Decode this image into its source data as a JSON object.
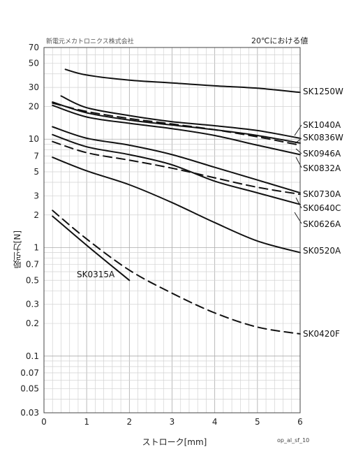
{
  "header": {
    "company": "新電元メカトロニクス株式会社",
    "condition_note": "20℃における値"
  },
  "footer": {
    "figure_id": "op_al_sf_10"
  },
  "chart_data": {
    "type": "line",
    "title": "",
    "xlabel": "ストローク[mm]",
    "ylabel": "吸引力[N]",
    "xlim": [
      0,
      6
    ],
    "ylim": [
      0.03,
      70
    ],
    "y_scale": "log",
    "grid": true,
    "x_ticks": [
      "0",
      "1",
      "2",
      "3",
      "4",
      "5",
      "6"
    ],
    "y_ticks": [
      {
        "value": 70,
        "label": "70"
      },
      {
        "value": 50,
        "label": "50"
      },
      {
        "value": 30,
        "label": "30"
      },
      {
        "value": 20,
        "label": "20"
      },
      {
        "value": 10,
        "label": "10"
      },
      {
        "value": 7,
        "label": "7"
      },
      {
        "value": 5,
        "label": "5"
      },
      {
        "value": 3,
        "label": "3"
      },
      {
        "value": 2,
        "label": "2"
      },
      {
        "value": 1,
        "label": "1"
      },
      {
        "value": 0.7,
        "label": "0.7"
      },
      {
        "value": 0.5,
        "label": "0.5"
      },
      {
        "value": 0.3,
        "label": "0.3"
      },
      {
        "value": 0.2,
        "label": "0.2"
      },
      {
        "value": 0.1,
        "label": "0.1"
      },
      {
        "value": 0.07,
        "label": "0.07"
      },
      {
        "value": 0.05,
        "label": "0.05"
      },
      {
        "value": 0.03,
        "label": "0.03"
      }
    ],
    "series": [
      {
        "name": "SK1250W",
        "dashed": false,
        "x": [
          0.5,
          1,
          2,
          3,
          4,
          5,
          6
        ],
        "y": [
          44,
          39,
          35,
          33,
          31,
          29.5,
          27
        ]
      },
      {
        "name": "SK1040A",
        "dashed": false,
        "x": [
          0.4,
          1,
          2,
          3,
          4,
          5,
          6
        ],
        "y": [
          25,
          19.5,
          16.5,
          14.5,
          13.3,
          12,
          10.2
        ]
      },
      {
        "name": "SK0836W",
        "dashed": true,
        "x": [
          0.2,
          1,
          2,
          3,
          4,
          5,
          6
        ],
        "y": [
          21.5,
          18,
          15.5,
          13.8,
          12.2,
          10.5,
          8.8
        ]
      },
      {
        "name": "SK0946A",
        "dashed": false,
        "x": [
          0.2,
          1,
          2,
          3,
          4,
          5,
          6
        ],
        "y": [
          22,
          17.5,
          15,
          13.5,
          12.2,
          10.8,
          9.2
        ]
      },
      {
        "name": "SK0832A",
        "dashed": false,
        "x": [
          0.2,
          1,
          2,
          3,
          4,
          5,
          6
        ],
        "y": [
          20.5,
          16,
          14,
          12.5,
          10.8,
          8.8,
          7.2
        ]
      },
      {
        "name": "SK0730A",
        "dashed": false,
        "x": [
          0.2,
          1,
          2,
          3,
          4,
          5,
          6
        ],
        "y": [
          13,
          10.2,
          8.8,
          7.2,
          5.5,
          4.2,
          3.2
        ]
      },
      {
        "name": "SK0640C",
        "dashed": true,
        "x": [
          0.2,
          1,
          2,
          3,
          4,
          5,
          6
        ],
        "y": [
          9.5,
          7.5,
          6.4,
          5.4,
          4.4,
          3.6,
          3.1
        ]
      },
      {
        "name": "SK0626A",
        "dashed": false,
        "x": [
          0.2,
          1,
          2,
          3,
          4,
          5,
          6
        ],
        "y": [
          11,
          8.5,
          7.2,
          5.8,
          4.1,
          3.2,
          2.5
        ]
      },
      {
        "name": "SK0520A",
        "dashed": false,
        "x": [
          0.2,
          1,
          2,
          3,
          4,
          5,
          6
        ],
        "y": [
          6.8,
          5.1,
          3.8,
          2.6,
          1.7,
          1.15,
          0.9
        ]
      },
      {
        "name": "SK0420F",
        "dashed": true,
        "x": [
          0.2,
          1,
          2,
          3,
          4,
          5,
          6
        ],
        "y": [
          2.2,
          1.2,
          0.62,
          0.38,
          0.25,
          0.185,
          0.16
        ]
      },
      {
        "name": "SK0315A",
        "dashed": false,
        "x": [
          0.2,
          1,
          2
        ],
        "y": [
          1.95,
          1.05,
          0.5
        ]
      }
    ]
  }
}
